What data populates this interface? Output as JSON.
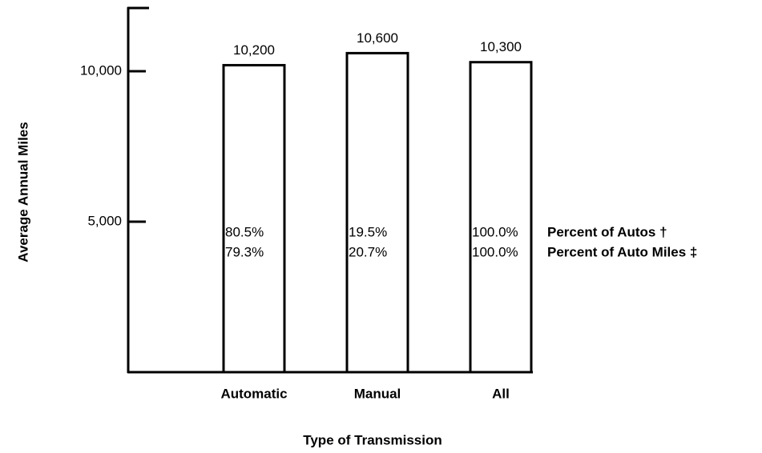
{
  "chart_data": {
    "type": "bar",
    "x_label": "Type of Transmission",
    "y_label": "Average Annual Miles",
    "categories": [
      "Automatic",
      "Manual",
      "All"
    ],
    "values": [
      10200,
      10600,
      10300
    ],
    "value_labels": [
      "10,200",
      "10,600",
      "10,300"
    ],
    "color": "#ffffff",
    "ylim": [
      0,
      12100
    ],
    "yticks": [
      {
        "value": 5000,
        "label": "5,000"
      },
      {
        "value": 10000,
        "label": "10,000"
      }
    ],
    "grid": false,
    "annotation_rows": [
      {
        "label": "Percent of Autos †",
        "values": [
          "80.5%",
          "19.5%",
          "100.0%"
        ]
      },
      {
        "label": "Percent of Auto Miles ‡",
        "values": [
          "79.3%",
          "20.7%",
          "100.0%"
        ]
      }
    ]
  }
}
